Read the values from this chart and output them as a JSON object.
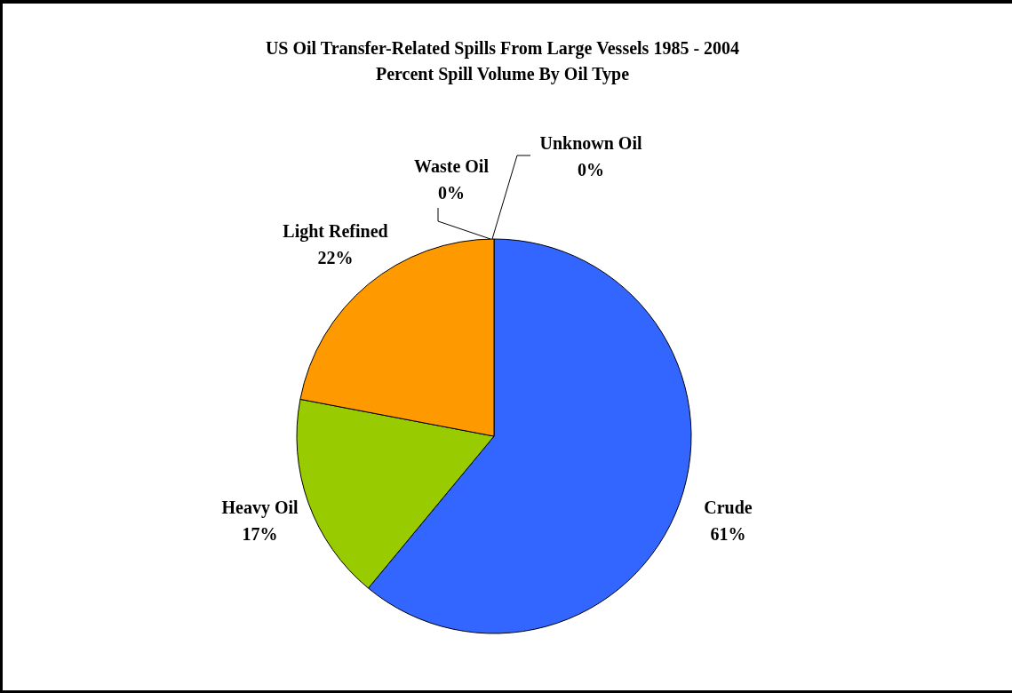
{
  "chart_data": {
    "type": "pie",
    "title": "US Oil Transfer-Related Spills From Large Vessels 1985 - 2004",
    "subtitle": "Percent Spill Volume By Oil Type",
    "categories": [
      "Crude",
      "Heavy Oil",
      "Light Refined",
      "Waste Oil",
      "Unknown Oil"
    ],
    "values": [
      61,
      17,
      22,
      0,
      0
    ],
    "value_labels": [
      "61%",
      "17%",
      "22%",
      "0%",
      "0%"
    ],
    "colors": [
      "#3366ff",
      "#99cc00",
      "#ff9900",
      "#ffff00",
      "#ff0000"
    ]
  }
}
